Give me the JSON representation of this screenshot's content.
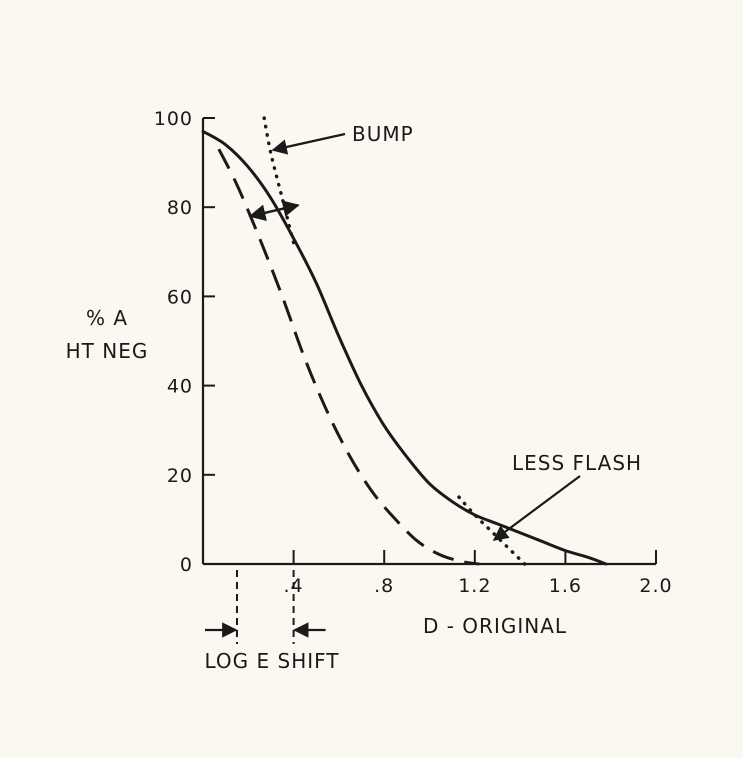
{
  "chart_data": {
    "type": "line",
    "title": "",
    "ylabel_lines": [
      "% A",
      "HT NEG"
    ],
    "xlabel": "D - ORIGINAL",
    "xlim": [
      0,
      2.0
    ],
    "ylim": [
      0,
      100
    ],
    "x_ticks": [
      0.4,
      0.8,
      1.2,
      1.6,
      2.0
    ],
    "x_tick_labels": [
      ".4",
      ".8",
      "1.2",
      "1.6",
      "2.0"
    ],
    "y_ticks": [
      0,
      20,
      40,
      60,
      80,
      100
    ],
    "y_tick_labels": [
      "0",
      "20",
      "40",
      "60",
      "80",
      "100"
    ],
    "grid": false,
    "series": [
      {
        "style": "solid",
        "points": [
          [
            0.0,
            97
          ],
          [
            0.1,
            94
          ],
          [
            0.2,
            89
          ],
          [
            0.3,
            82
          ],
          [
            0.4,
            73
          ],
          [
            0.5,
            63
          ],
          [
            0.6,
            51
          ],
          [
            0.7,
            40
          ],
          [
            0.8,
            31
          ],
          [
            0.9,
            24
          ],
          [
            1.0,
            18
          ],
          [
            1.1,
            14
          ],
          [
            1.2,
            11
          ],
          [
            1.3,
            9
          ],
          [
            1.4,
            7
          ],
          [
            1.5,
            5
          ],
          [
            1.6,
            3
          ],
          [
            1.7,
            1.5
          ],
          [
            1.78,
            0
          ]
        ]
      },
      {
        "style": "dashed",
        "points": [
          [
            0.07,
            93
          ],
          [
            0.15,
            85
          ],
          [
            0.25,
            73
          ],
          [
            0.35,
            60
          ],
          [
            0.45,
            46
          ],
          [
            0.55,
            34
          ],
          [
            0.65,
            24
          ],
          [
            0.75,
            16
          ],
          [
            0.85,
            10
          ],
          [
            0.95,
            5
          ],
          [
            1.05,
            2
          ],
          [
            1.15,
            0.5
          ],
          [
            1.22,
            0
          ]
        ]
      },
      {
        "style": "dotted",
        "points": [
          [
            0.27,
            100
          ],
          [
            0.3,
            92
          ],
          [
            0.35,
            82
          ],
          [
            0.4,
            72
          ]
        ]
      },
      {
        "style": "dotted",
        "points": [
          [
            1.13,
            15
          ],
          [
            1.2,
            11
          ],
          [
            1.28,
            7
          ],
          [
            1.36,
            3
          ],
          [
            1.42,
            0
          ]
        ]
      }
    ],
    "annotations": {
      "bump": "BUMP",
      "less_flash": "LESS FLASH",
      "log_e_shift": "LOG  E  SHIFT"
    },
    "shift_arrow": {
      "y": 80,
      "from_x": 0.42,
      "to_x": 0.2
    },
    "log_e_shift_markers": {
      "x1": 0.15,
      "x2": 0.4
    }
  }
}
